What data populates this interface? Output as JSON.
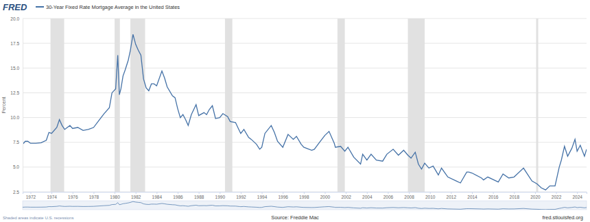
{
  "chart_data": {
    "type": "line",
    "logo": "FRED",
    "y_label": "Percent",
    "source": "Source: Freddie Mac",
    "site": "fred.stlouisfed.org",
    "note": "Shaded areas indicate U.S. recessions",
    "legend": "top-left",
    "grid": true,
    "xlim": [
      1971.25,
      2024.9
    ],
    "xticks": [
      1972,
      1974,
      1976,
      1978,
      1980,
      1982,
      1984,
      1986,
      1988,
      1990,
      1992,
      1994,
      1996,
      1998,
      2000,
      2002,
      2004,
      2006,
      2008,
      2010,
      2012,
      2014,
      2016,
      2018,
      2020,
      2022,
      2024
    ],
    "ylim": [
      2.5,
      20
    ],
    "yticks": [
      2.5,
      {
        "value": 5,
        "label": "5.0"
      },
      7.5,
      {
        "value": 10,
        "label": "10.0"
      },
      12.5,
      {
        "value": 15,
        "label": "15.0"
      },
      17.5,
      {
        "value": 20,
        "label": "20.0"
      }
    ],
    "recessions": [
      {
        "start": 1973.9,
        "end": 1975.2
      },
      {
        "start": 1980.0,
        "end": 1980.5
      },
      {
        "start": 1981.5,
        "end": 1982.9
      },
      {
        "start": 1990.5,
        "end": 1991.2
      },
      {
        "start": 2001.2,
        "end": 2001.9
      },
      {
        "start": 2007.9,
        "end": 2009.5
      },
      {
        "start": 2020.1,
        "end": 2020.3
      }
    ],
    "x": [
      1971.25,
      1971.5,
      1971.75,
      1972,
      1972.5,
      1973,
      1973.5,
      1973.75,
      1974,
      1974.5,
      1974.75,
      1975,
      1975.25,
      1975.5,
      1975.75,
      1976,
      1976.5,
      1977,
      1977.5,
      1978,
      1978.5,
      1979,
      1979.5,
      1979.75,
      1980.1,
      1980.3,
      1980.45,
      1980.6,
      1980.8,
      1981,
      1981.3,
      1981.5,
      1981.75,
      1982,
      1982.25,
      1982.5,
      1982.75,
      1983,
      1983.25,
      1983.5,
      1983.75,
      1984,
      1984.5,
      1984.75,
      1985,
      1985.5,
      1985.75,
      1986,
      1986.25,
      1986.5,
      1986.75,
      1987,
      1987.3,
      1987.75,
      1988,
      1988.5,
      1988.75,
      1989,
      1989.3,
      1989.6,
      1990,
      1990.3,
      1990.75,
      1991,
      1991.5,
      1991.9,
      1992,
      1992.3,
      1992.75,
      1993,
      1993.5,
      1993.8,
      1994,
      1994.3,
      1994.9,
      1995.2,
      1995.5,
      1996,
      1996.5,
      1997,
      1997.3,
      1997.75,
      1998,
      1998.75,
      1999,
      1999.5,
      2000,
      2000.4,
      2000.9,
      2001,
      2001.5,
      2001.9,
      2002.2,
      2002.75,
      2003.4,
      2003.6,
      2004,
      2004.4,
      2004.9,
      2005.5,
      2005.9,
      2006.5,
      2007,
      2007.5,
      2007.9,
      2008.2,
      2008.6,
      2008.9,
      2009.2,
      2009.5,
      2009.9,
      2010.3,
      2010.8,
      2011.1,
      2011.7,
      2012.5,
      2012.9,
      2013.5,
      2013.7,
      2014,
      2014.9,
      2015.1,
      2015.5,
      2016.5,
      2016.95,
      2017.5,
      2018,
      2018.9,
      2019.7,
      2020.2,
      2020.6,
      2021.0,
      2021.4,
      2021.9,
      2022.3,
      2022.5,
      2022.8,
      2023.1,
      2023.5,
      2023.8,
      2024.0,
      2024.3,
      2024.7,
      2024.9
    ],
    "series": [
      {
        "name": "30-Year Fixed Rate Mortgage Average in the United States",
        "color": "#4572a7",
        "values": [
          7.3,
          7.6,
          7.6,
          7.4,
          7.4,
          7.45,
          7.7,
          8.5,
          8.4,
          9.0,
          9.8,
          9.2,
          8.8,
          9.0,
          9.2,
          8.9,
          9.0,
          8.7,
          8.8,
          9.0,
          9.7,
          10.4,
          11.0,
          12.5,
          12.9,
          16.3,
          12.3,
          12.9,
          14.2,
          14.8,
          15.8,
          16.8,
          18.4,
          17.4,
          16.8,
          16.3,
          13.9,
          13.0,
          12.7,
          13.4,
          13.4,
          13.2,
          14.7,
          14.0,
          13.1,
          12.2,
          12.0,
          10.9,
          10.0,
          10.3,
          9.8,
          9.2,
          10.3,
          11.3,
          10.2,
          10.5,
          10.3,
          10.8,
          11.2,
          9.9,
          10.0,
          10.4,
          10.1,
          9.6,
          9.5,
          8.6,
          8.4,
          8.8,
          8.0,
          7.8,
          7.3,
          6.8,
          7.0,
          8.4,
          9.2,
          8.5,
          7.6,
          7.0,
          8.3,
          7.8,
          8.1,
          7.3,
          7.0,
          6.7,
          6.8,
          7.5,
          8.2,
          8.6,
          7.4,
          7.0,
          7.1,
          6.6,
          7.0,
          6.0,
          5.3,
          6.3,
          5.7,
          6.3,
          5.7,
          5.6,
          6.3,
          6.8,
          6.2,
          6.7,
          6.2,
          5.9,
          6.5,
          5.3,
          4.8,
          5.4,
          4.9,
          5.1,
          4.2,
          4.9,
          4.0,
          3.6,
          3.4,
          4.5,
          4.5,
          4.4,
          3.9,
          3.7,
          4.0,
          3.5,
          4.3,
          3.9,
          4.0,
          4.9,
          3.6,
          3.3,
          2.9,
          2.7,
          3.1,
          3.1,
          5.0,
          5.7,
          7.1,
          6.1,
          6.9,
          7.8,
          6.6,
          7.2,
          6.1,
          6.8
        ]
      }
    ]
  }
}
